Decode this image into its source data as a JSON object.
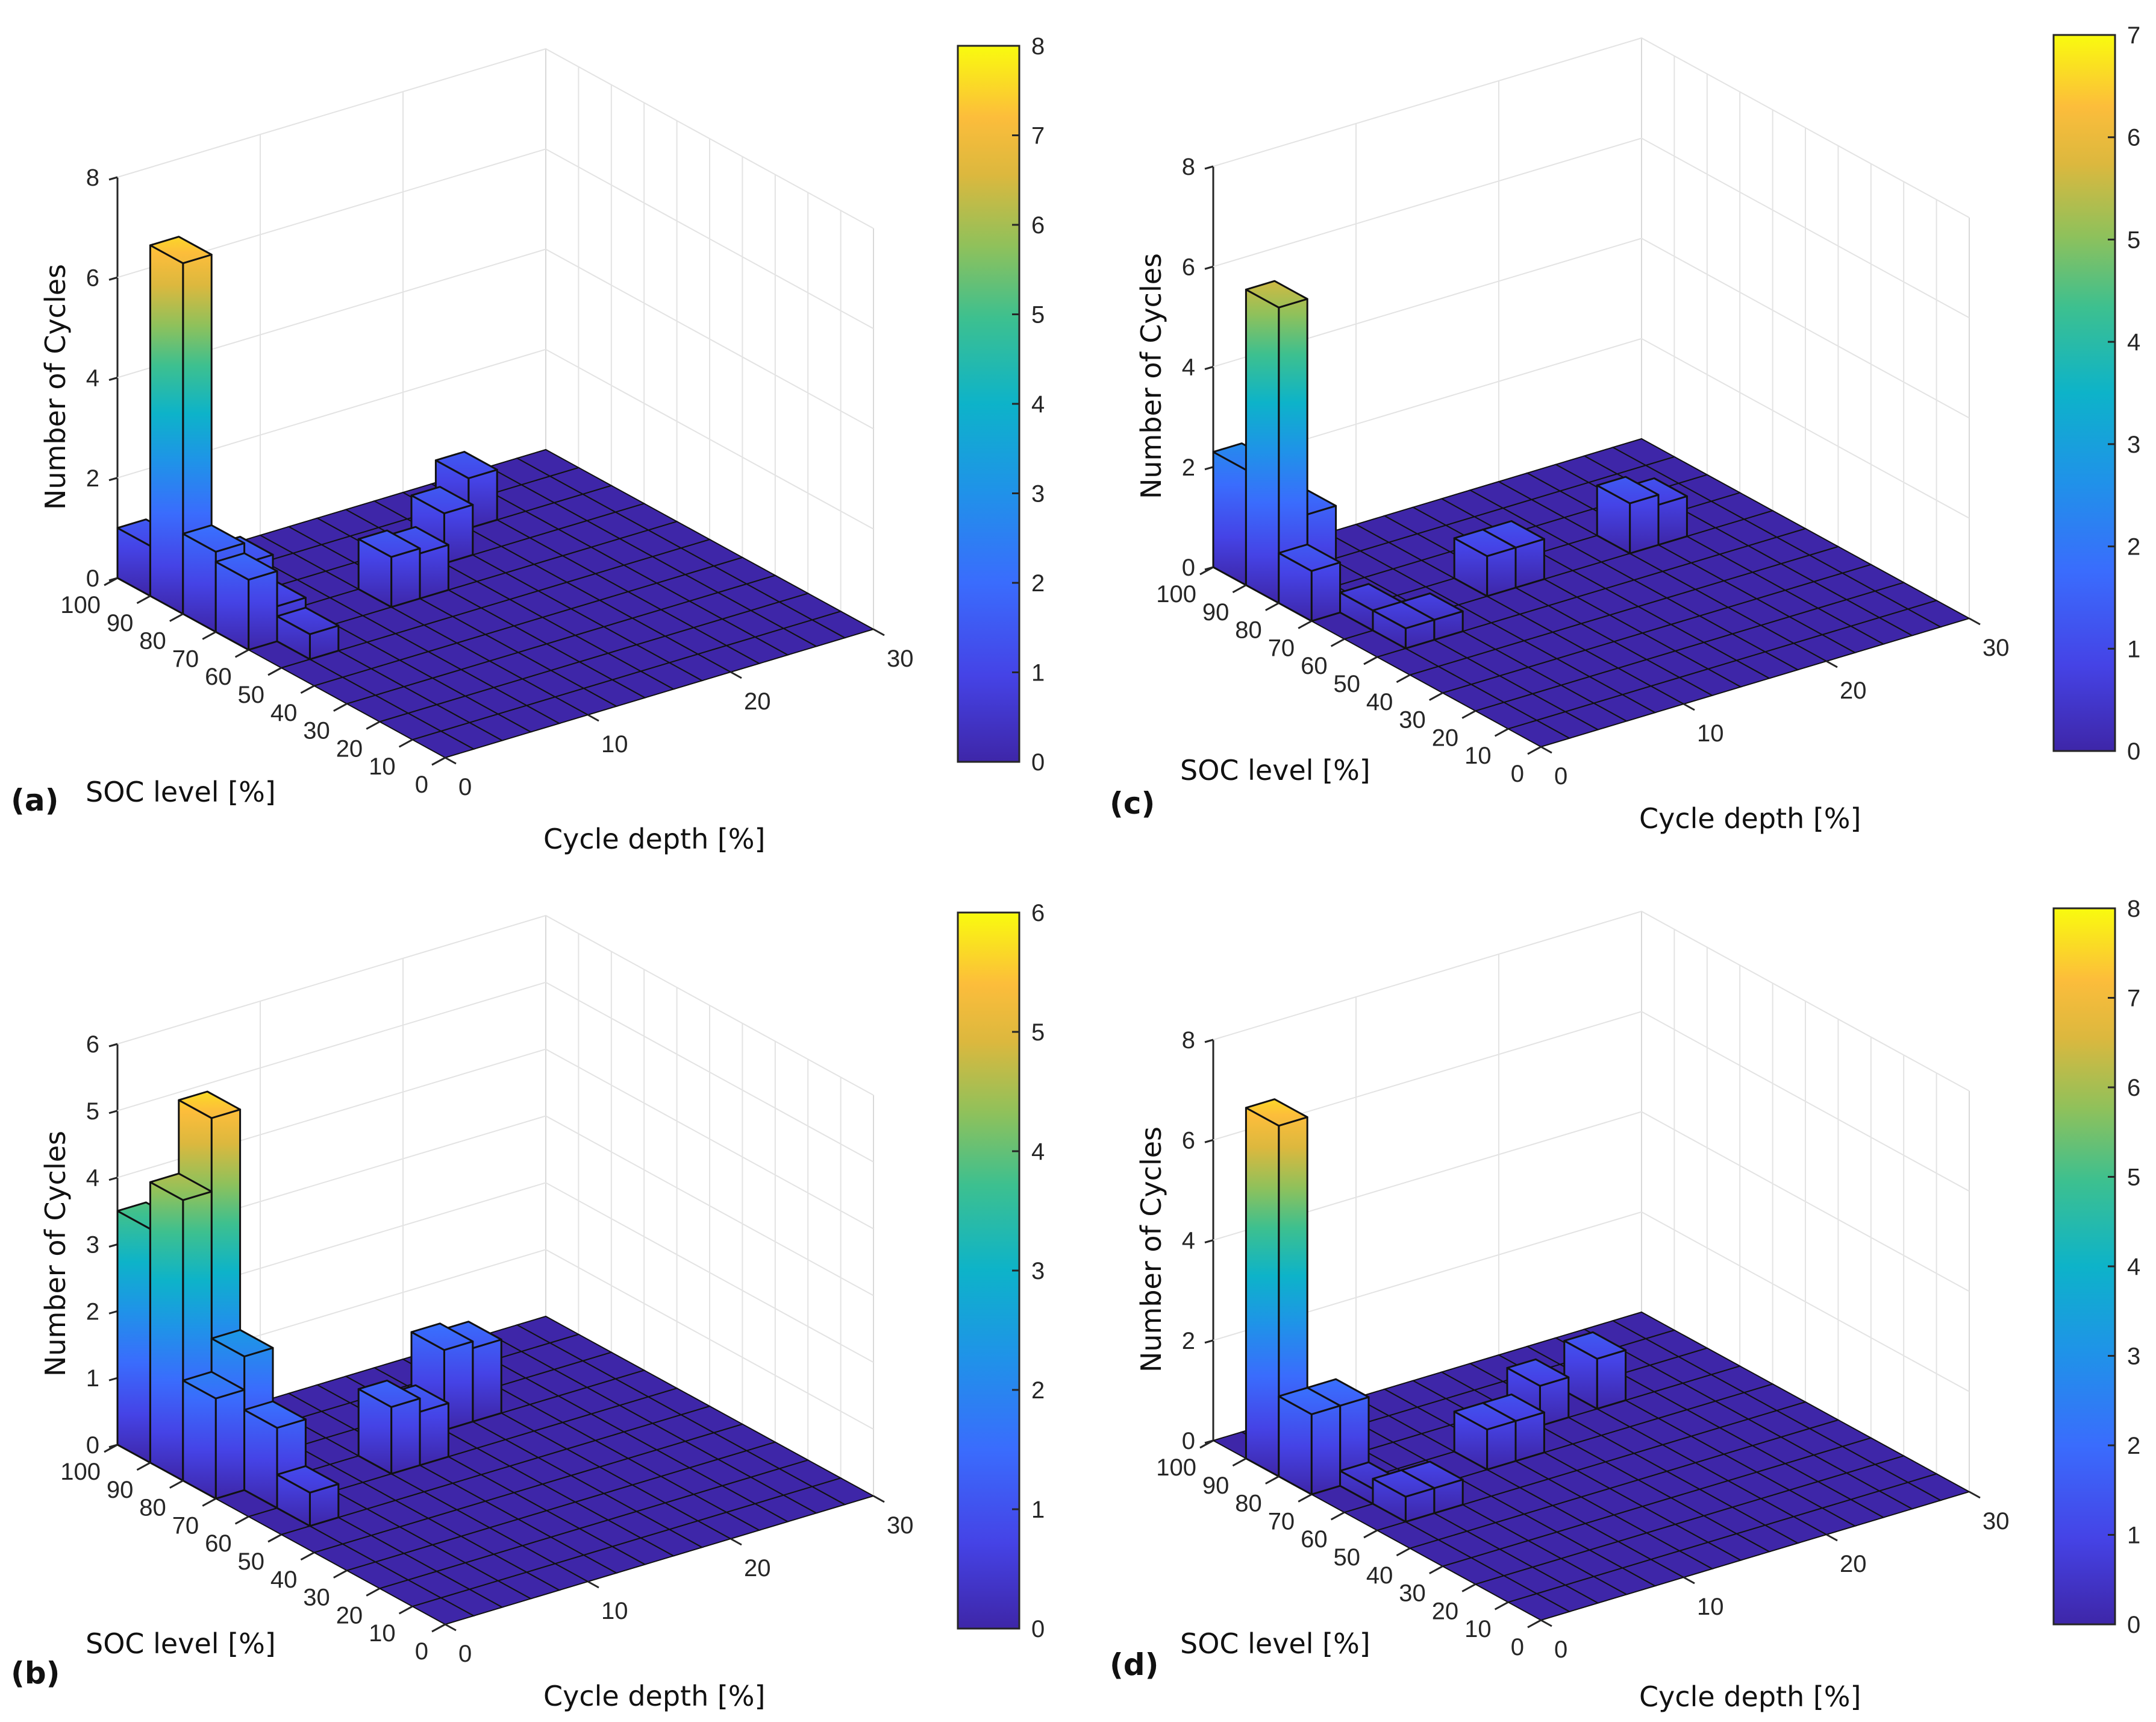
{
  "chart_data": [
    {
      "type": "bar3d",
      "panel_label": "(a)",
      "zlabel": "Number of Cycles",
      "xlabel": "SOC level [%]",
      "ylabel": "Cycle depth [%]",
      "zlim": [
        0,
        8
      ],
      "zticks": [
        "0",
        "2",
        "4",
        "6",
        "8"
      ],
      "soc_ticks": [
        "100",
        "90",
        "80",
        "70",
        "60",
        "50",
        "40",
        "30",
        "20",
        "10",
        "0"
      ],
      "depth_ticks": [
        "0",
        "10",
        "20",
        "30"
      ],
      "soc_range": [
        0,
        100
      ],
      "soc_bin": 10,
      "depth_range": [
        0,
        30
      ],
      "depth_bin": 2,
      "colorbar": {
        "range": [
          0,
          8
        ],
        "ticks": [
          "0",
          "1",
          "2",
          "3",
          "4",
          "5",
          "6",
          "7",
          "8"
        ]
      },
      "bars": [
        {
          "soc": 95,
          "depth": 1,
          "count": 1
        },
        {
          "soc": 85,
          "depth": 1,
          "count": 7
        },
        {
          "soc": 75,
          "depth": 1,
          "count": 1.6
        },
        {
          "soc": 65,
          "depth": 1,
          "count": 1.4
        },
        {
          "soc": 75,
          "depth": 3,
          "count": 1.2
        },
        {
          "soc": 65,
          "depth": 3,
          "count": 0.7
        },
        {
          "soc": 55,
          "depth": 3,
          "count": 0.5
        },
        {
          "soc": 65,
          "depth": 11,
          "count": 1
        },
        {
          "soc": 65,
          "depth": 13,
          "count": 0.9
        },
        {
          "soc": 75,
          "depth": 17,
          "count": 1
        },
        {
          "soc": 85,
          "depth": 21,
          "count": 1
        }
      ]
    },
    {
      "type": "bar3d",
      "panel_label": "(b)",
      "zlabel": "Number of Cycles",
      "xlabel": "SOC level [%]",
      "ylabel": "Cycle depth [%]",
      "zlim": [
        0,
        6
      ],
      "zticks": [
        "0",
        "1",
        "2",
        "3",
        "4",
        "5",
        "6"
      ],
      "soc_ticks": [
        "100",
        "90",
        "80",
        "70",
        "60",
        "50",
        "40",
        "30",
        "20",
        "10",
        "0"
      ],
      "depth_ticks": [
        "0",
        "10",
        "20",
        "30"
      ],
      "soc_range": [
        0,
        100
      ],
      "soc_bin": 10,
      "depth_range": [
        0,
        30
      ],
      "depth_bin": 2,
      "colorbar": {
        "range": [
          0,
          6
        ],
        "ticks": [
          "0",
          "1",
          "2",
          "3",
          "4",
          "5",
          "6"
        ]
      },
      "bars": [
        {
          "soc": 95,
          "depth": 1,
          "count": 3.5
        },
        {
          "soc": 85,
          "depth": 3,
          "count": 5.3
        },
        {
          "soc": 85,
          "depth": 1,
          "count": 4.2
        },
        {
          "soc": 75,
          "depth": 3,
          "count": 2
        },
        {
          "soc": 75,
          "depth": 1,
          "count": 1.5
        },
        {
          "soc": 65,
          "depth": 3,
          "count": 1.2
        },
        {
          "soc": 55,
          "depth": 3,
          "count": 0.5
        },
        {
          "soc": 65,
          "depth": 11,
          "count": 1
        },
        {
          "soc": 65,
          "depth": 13,
          "count": 0.8
        },
        {
          "soc": 75,
          "depth": 17,
          "count": 1.2
        },
        {
          "soc": 75,
          "depth": 19,
          "count": 1.1
        }
      ]
    },
    {
      "type": "bar3d",
      "panel_label": "(c)",
      "zlabel": "Number of Cycles",
      "xlabel": "SOC level [%]",
      "ylabel": "Cycle depth [%]",
      "zlim": [
        0,
        8
      ],
      "zticks": [
        "0",
        "2",
        "4",
        "6",
        "8"
      ],
      "soc_ticks": [
        "100",
        "90",
        "80",
        "70",
        "60",
        "50",
        "40",
        "30",
        "20",
        "10",
        "0"
      ],
      "depth_ticks": [
        "0",
        "10",
        "20",
        "30"
      ],
      "soc_range": [
        0,
        100
      ],
      "soc_bin": 10,
      "depth_range": [
        0,
        30
      ],
      "depth_bin": 2,
      "colorbar": {
        "range": [
          0,
          7
        ],
        "ticks": [
          "0",
          "1",
          "2",
          "3",
          "4",
          "5",
          "6",
          "7"
        ]
      },
      "bars": [
        {
          "soc": 95,
          "depth": 1,
          "count": 2.3
        },
        {
          "soc": 85,
          "depth": 1,
          "count": 5.9
        },
        {
          "soc": 85,
          "depth": 3,
          "count": 1.6
        },
        {
          "soc": 75,
          "depth": 1,
          "count": 1
        },
        {
          "soc": 65,
          "depth": 3,
          "count": 0.4
        },
        {
          "soc": 55,
          "depth": 3,
          "count": 0.4
        },
        {
          "soc": 55,
          "depth": 5,
          "count": 0.4
        },
        {
          "soc": 65,
          "depth": 11,
          "count": 0.8
        },
        {
          "soc": 65,
          "depth": 13,
          "count": 0.8
        },
        {
          "soc": 65,
          "depth": 21,
          "count": 1
        },
        {
          "soc": 65,
          "depth": 23,
          "count": 0.8
        }
      ]
    },
    {
      "type": "bar3d",
      "panel_label": "(d)",
      "zlabel": "Number of Cycles",
      "xlabel": "SOC level [%]",
      "ylabel": "Cycle depth [%]",
      "zlim": [
        0,
        8
      ],
      "zticks": [
        "0",
        "2",
        "4",
        "6",
        "8"
      ],
      "soc_ticks": [
        "100",
        "90",
        "80",
        "70",
        "60",
        "50",
        "40",
        "30",
        "20",
        "10",
        "0"
      ],
      "depth_ticks": [
        "0",
        "10",
        "20",
        "30"
      ],
      "soc_range": [
        0,
        100
      ],
      "soc_bin": 10,
      "depth_range": [
        0,
        30
      ],
      "depth_bin": 2,
      "colorbar": {
        "range": [
          0,
          8
        ],
        "ticks": [
          "0",
          "1",
          "2",
          "3",
          "4",
          "5",
          "6",
          "7",
          "8"
        ]
      },
      "bars": [
        {
          "soc": 85,
          "depth": 1,
          "count": 7
        },
        {
          "soc": 75,
          "depth": 1,
          "count": 1.6
        },
        {
          "soc": 75,
          "depth": 3,
          "count": 1.6
        },
        {
          "soc": 65,
          "depth": 3,
          "count": 0.3
        },
        {
          "soc": 55,
          "depth": 3,
          "count": 0.5
        },
        {
          "soc": 55,
          "depth": 5,
          "count": 0.5
        },
        {
          "soc": 65,
          "depth": 11,
          "count": 0.8
        },
        {
          "soc": 65,
          "depth": 13,
          "count": 0.8
        },
        {
          "soc": 75,
          "depth": 17,
          "count": 0.8
        },
        {
          "soc": 75,
          "depth": 21,
          "count": 1
        }
      ]
    }
  ]
}
